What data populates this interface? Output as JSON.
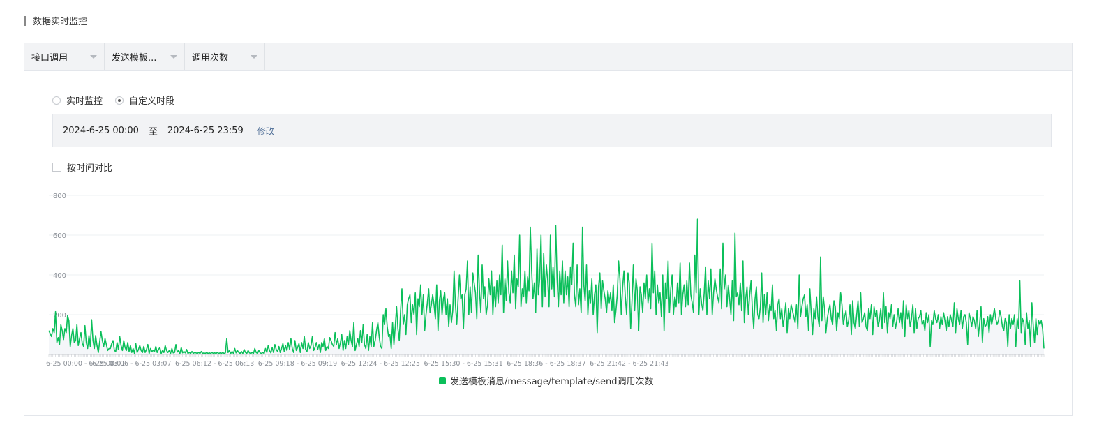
{
  "section_title": "数据实时监控",
  "toolbar": {
    "dropdowns": [
      {
        "label": "接口调用"
      },
      {
        "label": "发送模板..."
      },
      {
        "label": "调用次数"
      }
    ]
  },
  "mode": {
    "realtime_label": "实时监控",
    "custom_label": "自定义时段",
    "selected": "custom"
  },
  "range": {
    "start": "2024-6-25 00:00",
    "separator": "至",
    "end": "2024-6-25 23:59",
    "edit_label": "修改"
  },
  "compare": {
    "label": "按时间对比",
    "checked": false
  },
  "colors": {
    "series": "#0bbf5a",
    "area": "#f4f6f9",
    "grid": "#eef0f3",
    "axis_text": "#8a8f96"
  },
  "chart_data": {
    "type": "line",
    "title": "",
    "xlabel": "",
    "ylabel": "",
    "ylim": [
      0,
      800
    ],
    "yticks": [
      200,
      400,
      600,
      800
    ],
    "xtick_labels": [
      "6-25 00:00 - 6-25 00:01",
      "6-25 03:06 - 6-25 03:07",
      "6-25 06:12 - 6-25 06:13",
      "6-25 09:18 - 6-25 09:19",
      "6-25 12:24 - 6-25 12:25",
      "6-25 15:30 - 6-25 15:31",
      "6-25 18:36 - 6-25 18:37",
      "6-25 21:42 - 6-25 21:43"
    ],
    "x_interval_minutes": 3,
    "grid": true,
    "legend_position": "bottom",
    "series": [
      {
        "name": "发送模板消息/message/template/send调用次数",
        "values": [
          120,
          105,
          90,
          130,
          110,
          215,
          60,
          85,
          50,
          150,
          120,
          75,
          130,
          110,
          195,
          170,
          40,
          95,
          130,
          60,
          70,
          150,
          45,
          80,
          110,
          55,
          40,
          145,
          60,
          30,
          95,
          40,
          175,
          70,
          30,
          95,
          45,
          10,
          65,
          115,
          70,
          40,
          80,
          50,
          20,
          30,
          30,
          55,
          70,
          20,
          15,
          60,
          25,
          90,
          45,
          20,
          70,
          35,
          20,
          60,
          15,
          45,
          10,
          30,
          5,
          55,
          10,
          25,
          45,
          20,
          10,
          40,
          10,
          25,
          50,
          5,
          30,
          15,
          20,
          15,
          40,
          10,
          25,
          35,
          5,
          20,
          10,
          45,
          20,
          10,
          20,
          5,
          30,
          8,
          10,
          50,
          12,
          20,
          5,
          35,
          8,
          15,
          8,
          25,
          5,
          10,
          5,
          15,
          5,
          10,
          8,
          5,
          10,
          5,
          15,
          5,
          8,
          5,
          10,
          5,
          8,
          5,
          10,
          5,
          8,
          5,
          10,
          5,
          8,
          5,
          10,
          5,
          8,
          80,
          10,
          20,
          5,
          15,
          5,
          30,
          8,
          20,
          10,
          5,
          15,
          5,
          25,
          10,
          5,
          20,
          8,
          5,
          10,
          5,
          30,
          10,
          5,
          20,
          8,
          5,
          10,
          5,
          30,
          10,
          45,
          20,
          8,
          35,
          10,
          50,
          25,
          15,
          40,
          10,
          30,
          55,
          15,
          45,
          20,
          60,
          25,
          80,
          30,
          10,
          70,
          20,
          35,
          55,
          10,
          60,
          30,
          90,
          25,
          15,
          60,
          30,
          45,
          90,
          20,
          35,
          60,
          25,
          50,
          10,
          60,
          40,
          80,
          20,
          40,
          30,
          85,
          70,
          50,
          40,
          110,
          50,
          80,
          30,
          60,
          100,
          20,
          70,
          30,
          90,
          50,
          120,
          70,
          40,
          160,
          20,
          50,
          80,
          40,
          120,
          60,
          150,
          50,
          30,
          100,
          20,
          90,
          40,
          160,
          40,
          70,
          120,
          160,
          90,
          40,
          30,
          200,
          150,
          230,
          140,
          90,
          100,
          30,
          160,
          50,
          140,
          240,
          130,
          70,
          220,
          330,
          150,
          200,
          100,
          250,
          280,
          300,
          160,
          250,
          200,
          310,
          100,
          280,
          240,
          350,
          200,
          300,
          120,
          200,
          260,
          330,
          210,
          250,
          300,
          250,
          180,
          350,
          120,
          270,
          320,
          200,
          280,
          310,
          200,
          280,
          140,
          250,
          160,
          220,
          420,
          250,
          150,
          280,
          400,
          280,
          300,
          130,
          300,
          330,
          470,
          200,
          340,
          210,
          410,
          360,
          310,
          180,
          500,
          320,
          210,
          450,
          280,
          340,
          200,
          250,
          380,
          300,
          420,
          200,
          340,
          240,
          370,
          260,
          400,
          300,
          550,
          210,
          380,
          270,
          470,
          310,
          260,
          420,
          310,
          500,
          230,
          380,
          340,
          600,
          240,
          330,
          290,
          420,
          260,
          390,
          320,
          640,
          420,
          280,
          360,
          210,
          530,
          300,
          380,
          600,
          240,
          510,
          290,
          450,
          370,
          240,
          600,
          330,
          440,
          290,
          650,
          380,
          240,
          420,
          300,
          470,
          260,
          420,
          300,
          390,
          240,
          440,
          350,
          560,
          300,
          240,
          450,
          250,
          330,
          210,
          640,
          350,
          270,
          450,
          200,
          320,
          260,
          380,
          200,
          300,
          350,
          110,
          340,
          410,
          230,
          370,
          320,
          280,
          210,
          320,
          260,
          310,
          220,
          350,
          160,
          220,
          300,
          470,
          380,
          200,
          340,
          420,
          290,
          200,
          410,
          360,
          130,
          270,
          450,
          220,
          380,
          320,
          120,
          340,
          300,
          210,
          360,
          280,
          400,
          260,
          330,
          230,
          560,
          310,
          420,
          200,
          350,
          260,
          310,
          190,
          400,
          120,
          360,
          280,
          470,
          210,
          330,
          400,
          200,
          290,
          240,
          360,
          260,
          460,
          200,
          300,
          350,
          240,
          370,
          250,
          460,
          300,
          260,
          210,
          500,
          310,
          680,
          200,
          330,
          260,
          220,
          310,
          440,
          200,
          370,
          280,
          430,
          200,
          310,
          380,
          330,
          290,
          260,
          430,
          230,
          560,
          330,
          400,
          240,
          350,
          280,
          200,
          370,
          170,
          610,
          290,
          310,
          250,
          360,
          220,
          470,
          160,
          280,
          340,
          200,
          300,
          370,
          230,
          130,
          280,
          340,
          200,
          180,
          240,
          410,
          160,
          300,
          200,
          310,
          170,
          250,
          220,
          350,
          180,
          220,
          120,
          250,
          280,
          180,
          230,
          140,
          190,
          260,
          110,
          230,
          180,
          250,
          220,
          190,
          160,
          250,
          130,
          400,
          190,
          240,
          280,
          300,
          190,
          250,
          120,
          330,
          210,
          100,
          230,
          180,
          290,
          190,
          140,
          490,
          170,
          290,
          230,
          110,
          180,
          220,
          250,
          180,
          150,
          270,
          240,
          120,
          210,
          180,
          310,
          250,
          150,
          190,
          220,
          140,
          170,
          250,
          100,
          270,
          160,
          130,
          200,
          270,
          140,
          310,
          160,
          180,
          210,
          140,
          120,
          230,
          180,
          250,
          100,
          240,
          190,
          220,
          140,
          170,
          230,
          130,
          310,
          160,
          240,
          110,
          210,
          180,
          250,
          140,
          200,
          130,
          170,
          230,
          160,
          210,
          130,
          270,
          90,
          250,
          180,
          220,
          140,
          180,
          250,
          110,
          230,
          130,
          180,
          190,
          220,
          150,
          170,
          120,
          210,
          160,
          200,
          40,
          170,
          150,
          220,
          180,
          160,
          200,
          130,
          190,
          150,
          210,
          170,
          120,
          190,
          140,
          200,
          170,
          140,
          260,
          110,
          230,
          180,
          150,
          220,
          130,
          190,
          200,
          160,
          50,
          210,
          180,
          140,
          190,
          170,
          130,
          220,
          90,
          160,
          240,
          60,
          180,
          140,
          150,
          190,
          110,
          200,
          150,
          190,
          230,
          180,
          150,
          170,
          220,
          190,
          140,
          120,
          180,
          160,
          40,
          200,
          130,
          180,
          150,
          200,
          40,
          180,
          130,
          370,
          110,
          180,
          160,
          50,
          210,
          130,
          170,
          40,
          260,
          150,
          60,
          180,
          100,
          170,
          150,
          170,
          130,
          30
        ]
      }
    ]
  }
}
